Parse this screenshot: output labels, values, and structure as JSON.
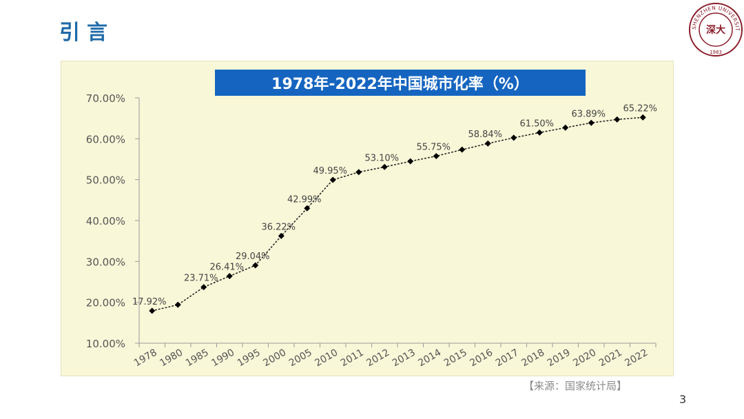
{
  "slide": {
    "heading": "引言",
    "source": "【来源：国家统计局】",
    "page_number": "3",
    "logo_text": "SHENZHEN UNIVERSITY",
    "logo_year": "1983"
  },
  "colors": {
    "heading": "#1f6aa8",
    "title_bg": "#1565c0",
    "chart_bg": "#f8f7d8",
    "logo": "#8b1c2a"
  },
  "chart_data": {
    "type": "line",
    "title": "1978年-2022年中国城市化率（%）",
    "categories": [
      "1978",
      "1980",
      "1985",
      "1990",
      "1995",
      "2000",
      "2005",
      "2010",
      "2011",
      "2012",
      "2013",
      "2014",
      "2015",
      "2016",
      "2017",
      "2018",
      "2019",
      "2020",
      "2021",
      "2022"
    ],
    "series": [
      {
        "values": [
          17.92,
          19.39,
          23.71,
          26.41,
          29.04,
          36.22,
          42.99,
          49.95,
          51.83,
          53.1,
          54.49,
          55.75,
          57.33,
          58.84,
          60.24,
          61.5,
          62.71,
          63.89,
          64.72,
          65.22
        ],
        "labels": {
          "0": "17.92%",
          "2": "23.71%",
          "3": "26.41%",
          "4": "29.04%",
          "5": "36.22%",
          "6": "42.99%",
          "7": "49.95%",
          "9": "53.10%",
          "11": "55.75%",
          "13": "58.84%",
          "15": "61.50%",
          "17": "63.89%",
          "19": "65.22%"
        }
      }
    ],
    "ylim": [
      10,
      70
    ],
    "yticks": [
      "10.00%",
      "20.00%",
      "30.00%",
      "40.00%",
      "50.00%",
      "60.00%",
      "70.00%"
    ],
    "line_style": "dotted",
    "marker": "diamond"
  }
}
